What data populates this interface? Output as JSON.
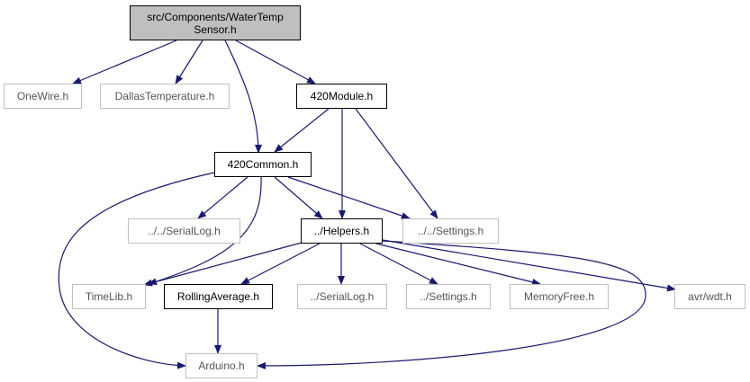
{
  "diagram": {
    "root": {
      "line1": "src/Components/WaterTemp",
      "line2": "Sensor.h"
    },
    "nodes": {
      "onewire": "OneWire.h",
      "dallas": "DallasTemperature.h",
      "module420": "420Module.h",
      "common420": "420Common.h",
      "seriallog_up2": "../../SerialLog.h",
      "settings_up2": "../../Settings.h",
      "helpers": "../Helpers.h",
      "timelib": "TimeLib.h",
      "rolling": "RollingAverage.h",
      "seriallog_up1": "../SerialLog.h",
      "settings_up1": "../Settings.h",
      "memoryfree": "MemoryFree.h",
      "wdt": "avr/wdt.h",
      "arduino": "Arduino.h"
    },
    "edge_color": "#191970"
  }
}
